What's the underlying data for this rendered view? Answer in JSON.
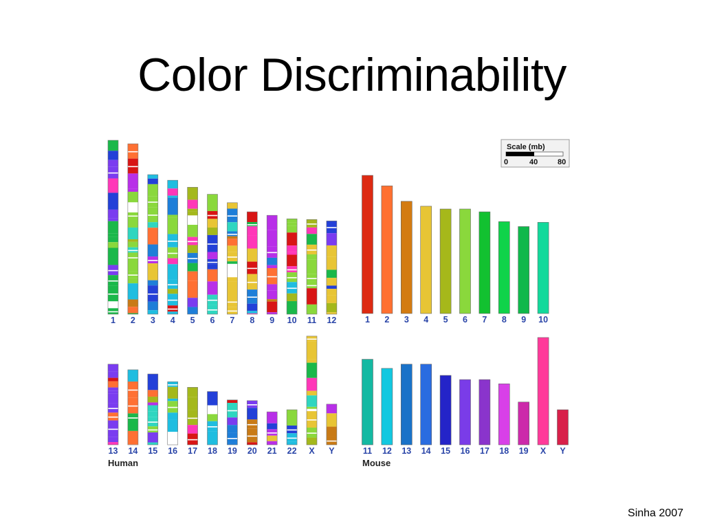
{
  "title": "Color Discriminability",
  "credit": "Sinha 2007",
  "scale": {
    "title": "Scale (mb)",
    "ticks": [
      "0",
      "40",
      "80"
    ]
  },
  "chart_data": [
    {
      "type": "bar",
      "group": "Human",
      "row1": {
        "categories": [
          "1",
          "2",
          "3",
          "4",
          "5",
          "6",
          "7",
          "8",
          "9",
          "10",
          "11",
          "12"
        ],
        "lengths_mb": [
          248,
          243,
          199,
          191,
          181,
          171,
          159,
          146,
          141,
          136,
          135,
          133
        ]
      },
      "row2": {
        "categories": [
          "13",
          "14",
          "15",
          "16",
          "17",
          "18",
          "19",
          "20",
          "21",
          "22",
          "X",
          "Y"
        ],
        "lengths_mb": [
          115,
          107,
          101,
          90,
          82,
          76,
          64,
          63,
          47,
          50,
          155,
          58
        ]
      },
      "stripe_palette": [
        "#e8c535",
        "#c87a16",
        "#d81515",
        "#1ab84a",
        "#7a3cf0",
        "#ff7033",
        "#2fd6c0",
        "#1fbde0",
        "#a4b81c",
        "#2340d8",
        "#1e7ed8",
        "#ff37b8",
        "#b82fe8",
        "#8ad83c",
        "#ffffff"
      ]
    },
    {
      "type": "bar",
      "group": "Mouse",
      "row1": {
        "categories": [
          "1",
          "2",
          "3",
          "4",
          "5",
          "6",
          "7",
          "8",
          "9",
          "10"
        ],
        "lengths_mb": [
          197,
          182,
          160,
          153,
          149,
          149,
          145,
          131,
          124,
          130
        ],
        "colors": [
          "#dd2a12",
          "#ff7030",
          "#d37b12",
          "#e7c535",
          "#a6b81a",
          "#8ad83c",
          "#12c130",
          "#0fd34a",
          "#10b84b",
          "#12d99b"
        ]
      },
      "row2": {
        "categories": [
          "11",
          "12",
          "13",
          "14",
          "15",
          "16",
          "17",
          "18",
          "19",
          "X",
          "Y"
        ],
        "lengths_mb": [
          122,
          109,
          115,
          115,
          99,
          93,
          93,
          87,
          61,
          153,
          50
        ],
        "colors": [
          "#14b9a2",
          "#12c8e0",
          "#1a72c8",
          "#2a6ce0",
          "#2424c8",
          "#7a3ce8",
          "#8a34cc",
          "#d840e8",
          "#cc2aaa",
          "#ff3a9a",
          "#d8204a"
        ]
      }
    }
  ]
}
